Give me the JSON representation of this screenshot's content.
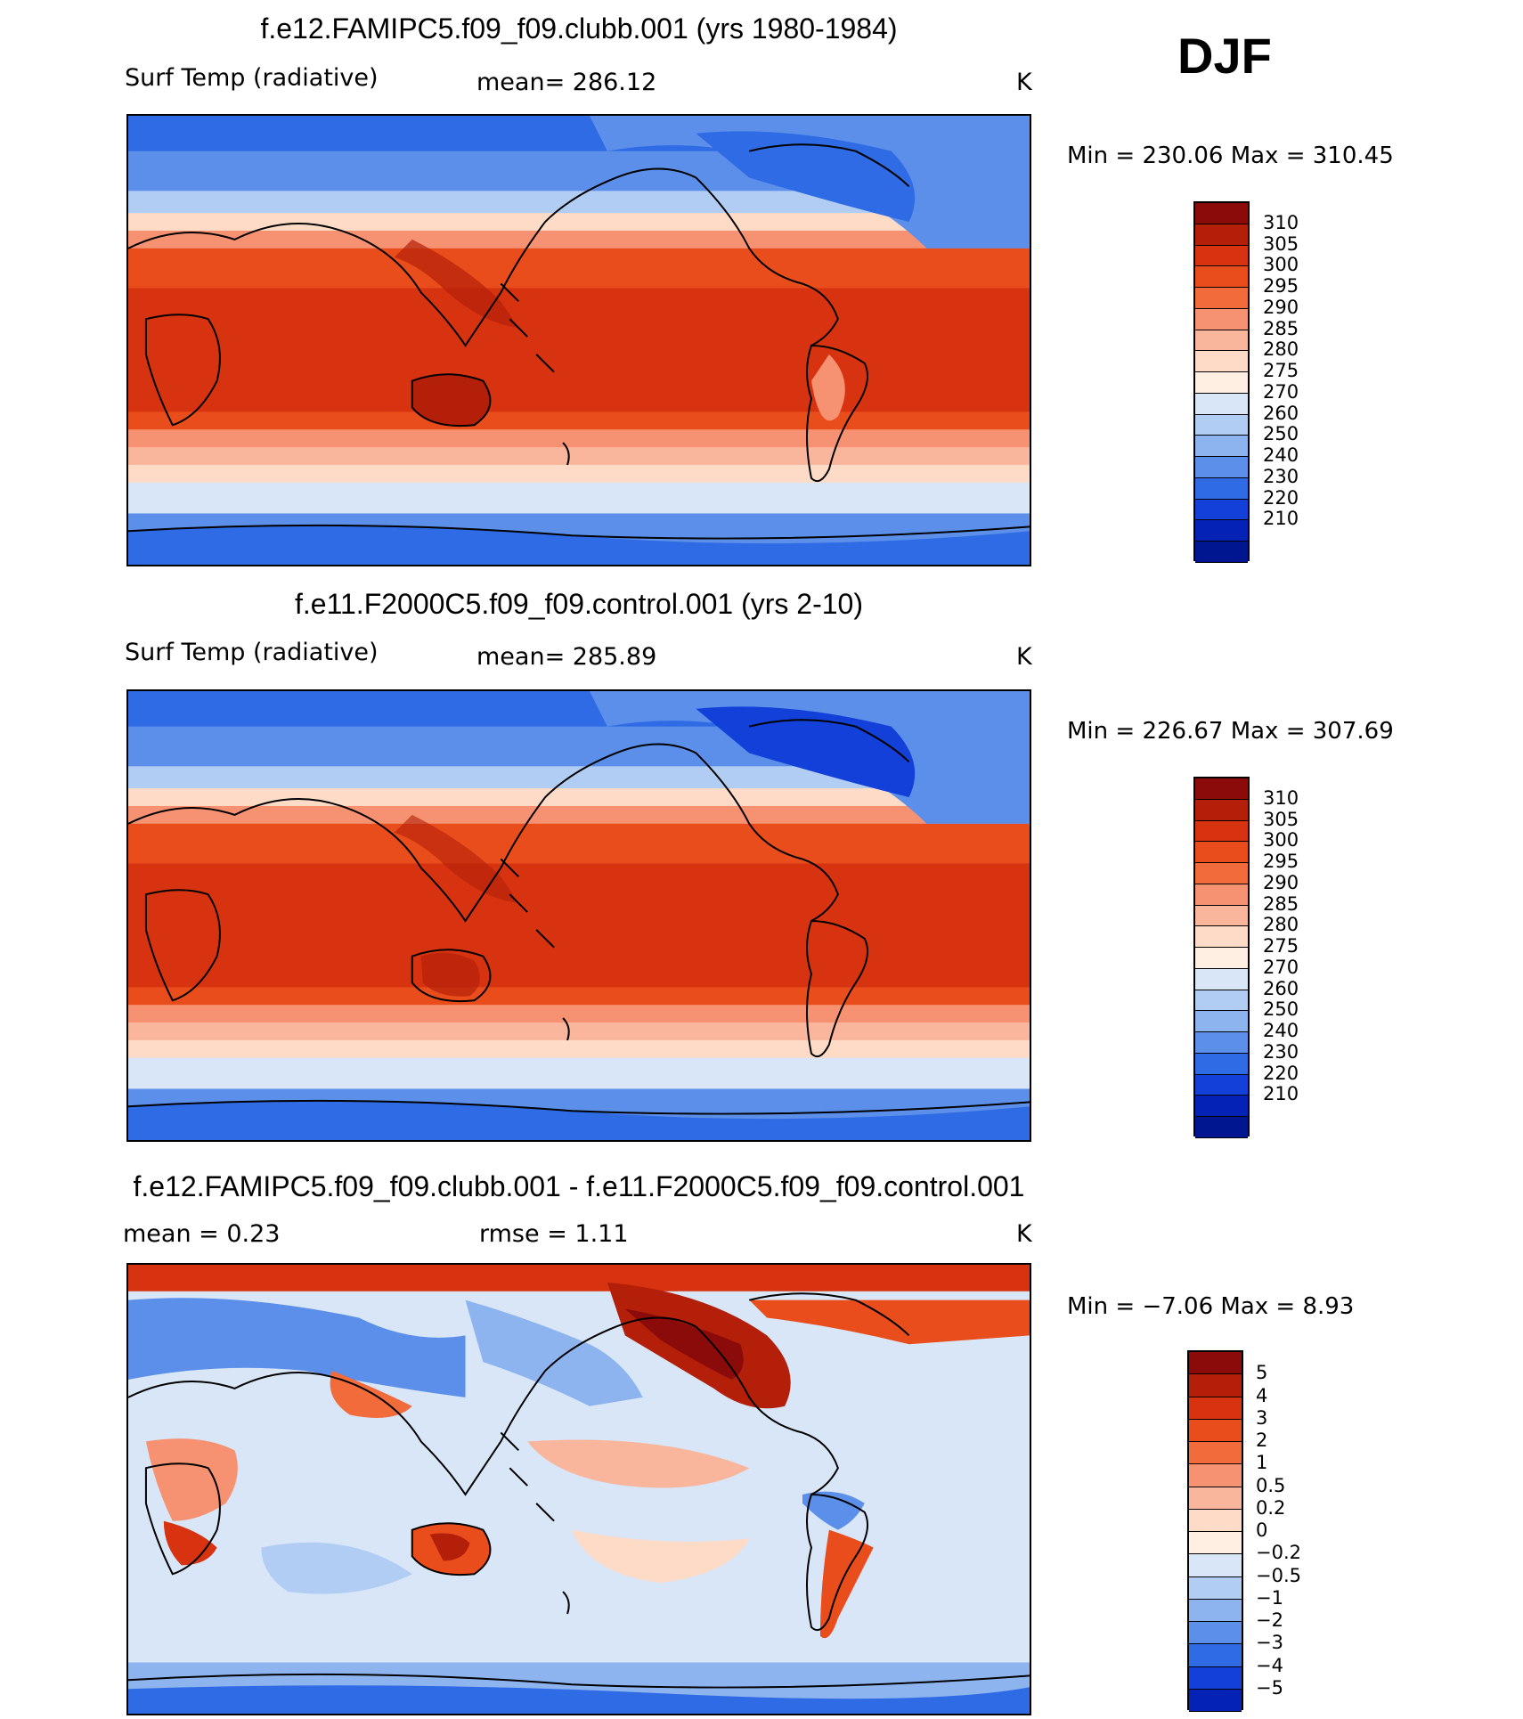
{
  "season": "DJF",
  "panels": [
    {
      "id": "case",
      "title": "f.e12.FAMIPC5.f09_f09.clubb.001 (yrs 1980-1984)",
      "left_label": "Surf Temp (radiative)",
      "center_label": "mean=  286.12",
      "units": "K",
      "range_label": "Min  =  230.06  Max  =  310.45",
      "colorbar": {
        "labels": [
          "310",
          "305",
          "300",
          "295",
          "290",
          "285",
          "280",
          "275",
          "270",
          "260",
          "250",
          "240",
          "230",
          "220",
          "210"
        ],
        "colors": [
          "#8b0a0a",
          "#b31f09",
          "#d83310",
          "#ea4d1c",
          "#f26b3a",
          "#f69272",
          "#fab69c",
          "#fddbc7",
          "#ffeee2",
          "#d8e6f8",
          "#b2cdf4",
          "#8eb4ef",
          "#5b8fe9",
          "#2f6be4",
          "#1240d8",
          "#0522b7",
          "#001590"
        ]
      }
    },
    {
      "id": "control",
      "title": "f.e11.F2000C5.f09_f09.control.001 (yrs 2-10)",
      "left_label": "Surf Temp (radiative)",
      "center_label": "mean=  285.89",
      "units": "K",
      "range_label": "Min  =  226.67  Max  =  307.69",
      "colorbar": {
        "labels": [
          "310",
          "305",
          "300",
          "295",
          "290",
          "285",
          "280",
          "275",
          "270",
          "260",
          "250",
          "240",
          "230",
          "220",
          "210"
        ],
        "colors": [
          "#8b0a0a",
          "#b31f09",
          "#d83310",
          "#ea4d1c",
          "#f26b3a",
          "#f69272",
          "#fab69c",
          "#fddbc7",
          "#ffeee2",
          "#d8e6f8",
          "#b2cdf4",
          "#8eb4ef",
          "#5b8fe9",
          "#2f6be4",
          "#1240d8",
          "#0522b7",
          "#001590"
        ]
      }
    },
    {
      "id": "diff",
      "title": "f.e12.FAMIPC5.f09_f09.clubb.001 - f.e11.F2000C5.f09_f09.control.001",
      "left_label": "mean  =     0.23",
      "center_label": "rmse  =     1.11",
      "units": "K",
      "range_label": "Min  =   −7.06  Max  =     8.93",
      "colorbar": {
        "labels": [
          "5",
          "4",
          "3",
          "2",
          "1",
          "0.5",
          "0.2",
          "0",
          "−0.2",
          "−0.5",
          "−1",
          "−2",
          "−3",
          "−4",
          "−5"
        ],
        "colors": [
          "#8b0a0a",
          "#b31f09",
          "#d83310",
          "#ea4d1c",
          "#f26b3a",
          "#f69272",
          "#fab69c",
          "#fddbc7",
          "#ffeee2",
          "#d8e6f8",
          "#b2cdf4",
          "#8eb4ef",
          "#5b8fe9",
          "#2f6be4",
          "#1240d8",
          "#0522b7"
        ]
      }
    }
  ]
}
